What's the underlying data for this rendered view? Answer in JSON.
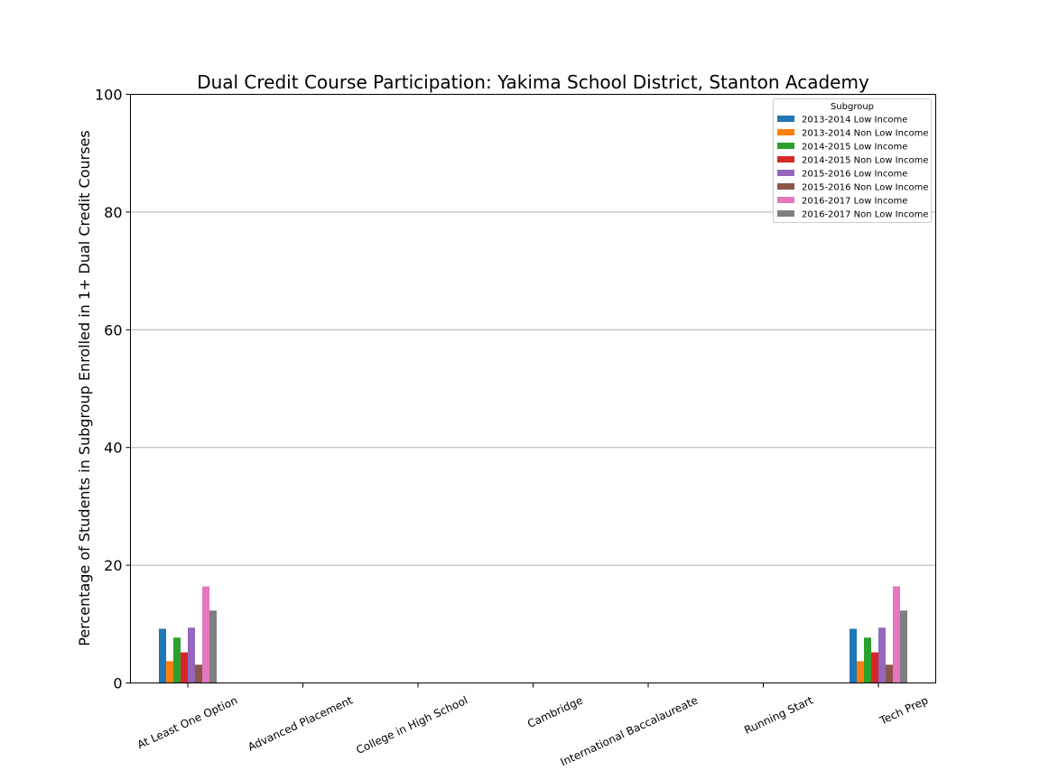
{
  "chart_data": {
    "type": "bar",
    "title": "Dual Credit Course Participation: Yakima School District, Stanton Academy",
    "xlabel": "",
    "ylabel": "Percentage of Students in Subgroup Enrolled in 1+ Dual Credit Courses",
    "ylim": [
      0,
      100
    ],
    "yticks": [
      "0",
      "20",
      "40",
      "60",
      "80",
      "100"
    ],
    "grid": "horizontal",
    "legend": {
      "title": "Subgroup",
      "placement": "top-right"
    },
    "categories": [
      "At Least One Option",
      "Advanced Placement",
      "College in High School",
      "Cambridge",
      "International Baccalaureate",
      "Running Start",
      "Tech Prep"
    ],
    "series": [
      {
        "name": "2013-2014 Low Income",
        "color": "#1f77b4",
        "values": [
          9.2,
          0,
          0,
          0,
          0,
          0,
          9.2
        ]
      },
      {
        "name": "2013-2014 Non Low Income",
        "color": "#ff7f0e",
        "values": [
          3.7,
          0,
          0,
          0,
          0,
          0,
          3.7
        ]
      },
      {
        "name": "2014-2015 Low Income",
        "color": "#2ca02c",
        "values": [
          7.7,
          0,
          0,
          0,
          0,
          0,
          7.7
        ]
      },
      {
        "name": "2014-2015 Non Low Income",
        "color": "#d62728",
        "values": [
          5.2,
          0,
          0,
          0,
          0,
          0,
          5.2
        ]
      },
      {
        "name": "2015-2016 Low Income",
        "color": "#9467bd",
        "values": [
          9.4,
          0,
          0,
          0,
          0,
          0,
          9.4
        ]
      },
      {
        "name": "2015-2016 Non Low Income",
        "color": "#8c564b",
        "values": [
          3.1,
          0,
          0,
          0,
          0,
          0,
          3.1
        ]
      },
      {
        "name": "2016-2017 Low Income",
        "color": "#e377c2",
        "values": [
          16.4,
          0,
          0,
          0,
          0,
          0,
          16.4
        ]
      },
      {
        "name": "2016-2017 Non Low Income",
        "color": "#7f7f7f",
        "values": [
          12.3,
          0,
          0,
          0,
          0,
          0,
          12.3
        ]
      }
    ]
  }
}
